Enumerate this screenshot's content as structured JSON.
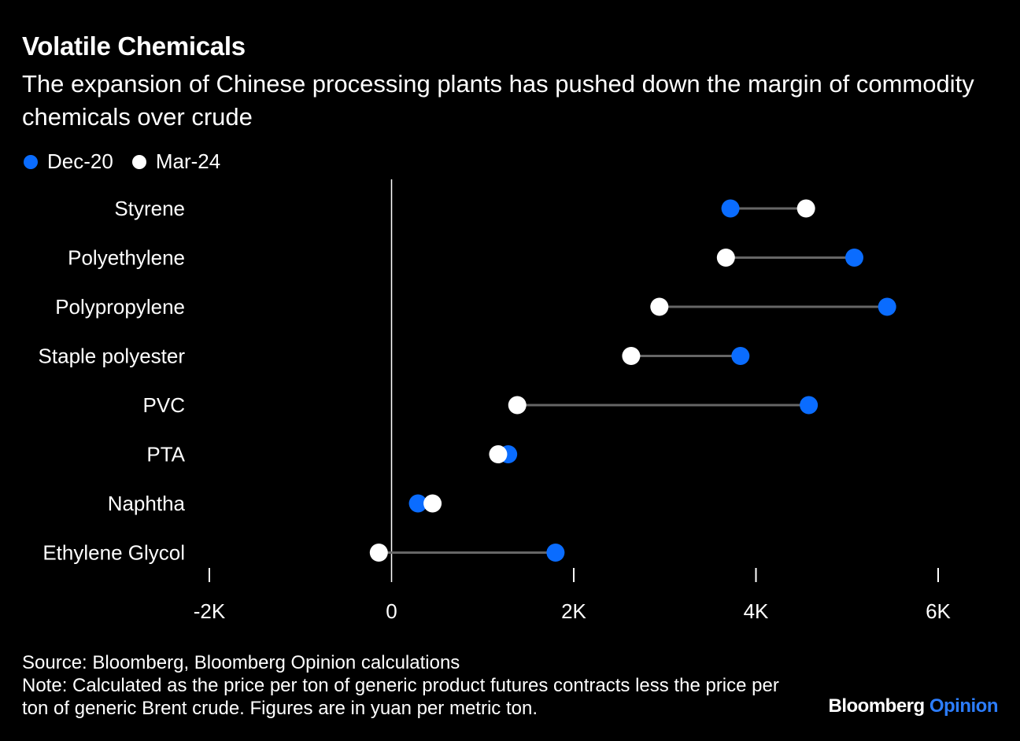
{
  "title": "Volatile Chemicals",
  "subtitle": "The expansion of Chinese processing plants has pushed down the margin of commodity chemicals over crude",
  "legend": {
    "dec20": "Dec-20",
    "mar24": "Mar-24"
  },
  "colors": {
    "dec20": "#0a6cff",
    "mar24": "#ffffff",
    "connector": "#666666",
    "axis": "#ffffff",
    "background": "#000000"
  },
  "chart_data": {
    "type": "dumbbell",
    "title": "Volatile Chemicals",
    "xlabel": "",
    "ylabel": "",
    "xlim": [
      -2000,
      6000
    ],
    "ticks": [
      {
        "value": -2000,
        "label": "-2K"
      },
      {
        "value": 0,
        "label": "0"
      },
      {
        "value": 2000,
        "label": "2K"
      },
      {
        "value": 4000,
        "label": "4K"
      },
      {
        "value": 6000,
        "label": "6K"
      }
    ],
    "categories": [
      "Styrene",
      "Polyethylene",
      "Polypropylene",
      "Staple polyester",
      "PVC",
      "PTA",
      "Naphtha",
      "Ethylene Glycol"
    ],
    "series": [
      {
        "name": "Dec-20",
        "values": [
          3720,
          5080,
          5440,
          3830,
          4580,
          1280,
          290,
          1800
        ]
      },
      {
        "name": "Mar-24",
        "values": [
          4550,
          3670,
          2940,
          2630,
          1380,
          1170,
          450,
          -140
        ]
      }
    ]
  },
  "footer": {
    "source": "Source: Bloomberg, Bloomberg Opinion calculations",
    "note": "Note: Calculated as the price per ton of generic product futures contracts less the price per ton of generic Brent crude. Figures are in yuan per metric ton."
  },
  "brand": {
    "name": "Bloomberg",
    "section": "Opinion"
  }
}
